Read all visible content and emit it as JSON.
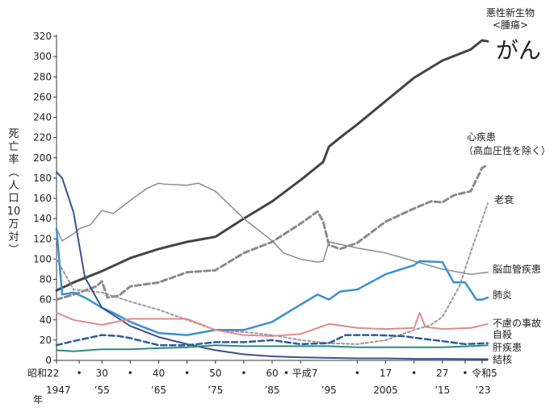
{
  "chart_data": {
    "type": "line",
    "ylabel": "死亡率（人口10万対）",
    "ylim": [
      0,
      320
    ],
    "yticks": [
      0,
      20,
      40,
      60,
      80,
      100,
      120,
      140,
      160,
      180,
      200,
      220,
      240,
      260,
      280,
      300,
      320
    ],
    "xlim": [
      1947,
      2023
    ],
    "xticks_top": [
      {
        "year": 1947,
        "label": "昭和22"
      },
      {
        "year": 1951,
        "label": "•"
      },
      {
        "year": 1955,
        "label": "30"
      },
      {
        "year": 1960,
        "label": "•"
      },
      {
        "year": 1965,
        "label": "40"
      },
      {
        "year": 1970,
        "label": "•"
      },
      {
        "year": 1975,
        "label": "50"
      },
      {
        "year": 1980,
        "label": "•"
      },
      {
        "year": 1985,
        "label": "60"
      },
      {
        "year": 1990,
        "label": "• 平成7"
      },
      {
        "year": 2000,
        "label": "•"
      },
      {
        "year": 2005,
        "label": "17"
      },
      {
        "year": 2010,
        "label": "•"
      },
      {
        "year": 2015,
        "label": "27"
      },
      {
        "year": 2019,
        "label": "•"
      },
      {
        "year": 2022,
        "label": "令和5"
      }
    ],
    "xticks_bottom": [
      {
        "year": 1947,
        "label": "1947"
      },
      {
        "year": 1955,
        "label": "’55"
      },
      {
        "year": 1965,
        "label": "’65"
      },
      {
        "year": 1975,
        "label": "’75"
      },
      {
        "year": 1985,
        "label": "’85"
      },
      {
        "year": 1995,
        "label": "’95"
      },
      {
        "year": 2005,
        "label": "2005"
      },
      {
        "year": 2015,
        "label": "’15"
      },
      {
        "year": 2023,
        "label": "’23"
      }
    ],
    "year_unit_label": "年",
    "series": [
      {
        "id": "cancer",
        "name_small": "悪性新生物",
        "name_small2": "<腫瘍>",
        "name": "がん",
        "color": "#444444",
        "dash": "",
        "width": 3,
        "x": [
          1947,
          1950,
          1955,
          1960,
          1965,
          1970,
          1975,
          1980,
          1985,
          1990,
          1994,
          1995,
          1997,
          2000,
          2005,
          2010,
          2015,
          2020,
          2022,
          2023
        ],
        "y": [
          69,
          77,
          88,
          101,
          110,
          117,
          122,
          140,
          157,
          178,
          196,
          211,
          220,
          233,
          256,
          279,
          296,
          307,
          316,
          315
        ]
      },
      {
        "id": "heart",
        "name": "心疾患",
        "name2": "（高血圧性を除く）",
        "color": "#8a8a8a",
        "dash": "7,4",
        "width": 3,
        "x": [
          1947,
          1950,
          1954,
          1955,
          1956,
          1958,
          1960,
          1965,
          1970,
          1975,
          1980,
          1985,
          1990,
          1993,
          1994,
          1995,
          1997,
          2000,
          2005,
          2010,
          2013,
          2015,
          2017,
          2020,
          2022,
          2023
        ],
        "y": [
          60,
          65,
          73,
          78,
          62,
          64,
          73,
          77,
          87,
          89,
          106,
          117,
          135,
          147,
          137,
          114,
          110,
          116,
          137,
          150,
          157,
          156,
          163,
          167,
          190,
          193
        ]
      },
      {
        "id": "senility",
        "name": "老衰",
        "color": "#9a9a9a",
        "dash": "3,3",
        "width": 2,
        "x": [
          1947,
          1950,
          1955,
          1960,
          1965,
          1970,
          1975,
          1980,
          1985,
          1990,
          1995,
          2000,
          2005,
          2010,
          2013,
          2015,
          2018,
          2020,
          2023
        ],
        "y": [
          100,
          70,
          67,
          58,
          50,
          40,
          30,
          28,
          25,
          20,
          17,
          16,
          20,
          30,
          35,
          43,
          73,
          107,
          155
        ]
      },
      {
        "id": "cerebrovascular",
        "name": "脳血管疾患",
        "color": "#8c8c8c",
        "dash": "",
        "width": 1.5,
        "x": [
          1947,
          1948,
          1950,
          1951,
          1953,
          1955,
          1957,
          1960,
          1963,
          1965,
          1966,
          1970,
          1972,
          1975,
          1980,
          1985,
          1987,
          1990,
          1993,
          1994,
          1995,
          2000,
          2005,
          2010,
          2015,
          2020,
          2023
        ],
        "y": [
          130,
          118,
          125,
          130,
          134,
          148,
          145,
          158,
          170,
          175,
          174,
          173,
          175,
          167,
          140,
          118,
          106,
          100,
          97,
          98,
          117,
          111,
          106,
          98,
          90,
          85,
          87
        ]
      },
      {
        "id": "pneumonia",
        "name": "肺炎",
        "color": "#3a8fd0",
        "dash": "",
        "width": 2.5,
        "x": [
          1947,
          1948,
          1950,
          1952,
          1955,
          1957,
          1960,
          1965,
          1970,
          1975,
          1980,
          1985,
          1990,
          1993,
          1995,
          1997,
          2000,
          2005,
          2010,
          2011,
          2015,
          2017,
          2019,
          2021,
          2022,
          2023
        ],
        "y": [
          130,
          65,
          67,
          62,
          52,
          47,
          38,
          27,
          25,
          30,
          30,
          38,
          55,
          65,
          60,
          68,
          70,
          85,
          94,
          98,
          97,
          77,
          77,
          60,
          60,
          62
        ]
      },
      {
        "id": "tuberculosis",
        "name": "結核",
        "color": "#3d4f8f",
        "dash": "",
        "width": 2,
        "x": [
          1947,
          1948,
          1950,
          1952,
          1955,
          1960,
          1965,
          1970,
          1975,
          1980,
          1985,
          1990,
          1995,
          2000,
          2005,
          2010,
          2015,
          2023
        ],
        "y": [
          186,
          180,
          146,
          82,
          52,
          34,
          23,
          16,
          10,
          6,
          4,
          3,
          2.5,
          2,
          2,
          1.5,
          1.5,
          1.2
        ]
      },
      {
        "id": "accident",
        "name": "不慮の事故",
        "color": "#e3898c",
        "dash": "",
        "width": 2,
        "x": [
          1947,
          1950,
          1955,
          1960,
          1965,
          1970,
          1975,
          1980,
          1985,
          1990,
          1995,
          2000,
          2005,
          2010,
          2011,
          2012,
          2015,
          2020,
          2023
        ],
        "y": [
          47,
          40,
          35,
          41,
          41,
          41,
          30,
          25,
          24,
          26,
          36,
          32,
          31,
          32,
          47,
          33,
          31,
          32,
          36
        ]
      },
      {
        "id": "suicide",
        "name": "自殺",
        "color": "#2a5ba0",
        "dash": "7,4",
        "width": 2.5,
        "x": [
          1947,
          1950,
          1955,
          1958,
          1960,
          1965,
          1970,
          1975,
          1980,
          1985,
          1990,
          1995,
          1998,
          2003,
          2008,
          2012,
          2015,
          2019,
          2023
        ],
        "y": [
          15,
          19,
          25,
          24,
          22,
          15,
          15,
          18,
          18,
          20,
          16,
          17,
          25,
          25,
          24,
          21,
          19,
          16,
          17
        ]
      },
      {
        "id": "liver",
        "name": "肝疾患",
        "color": "#2a8c7a",
        "dash": "",
        "width": 2,
        "x": [
          1947,
          1950,
          1955,
          1960,
          1965,
          1970,
          1975,
          1980,
          1985,
          1990,
          1995,
          2000,
          2005,
          2010,
          2015,
          2020,
          2023
        ],
        "y": [
          10,
          9,
          11,
          11,
          12,
          13,
          15,
          14,
          14,
          14,
          14,
          13,
          13,
          13,
          13,
          14,
          15
        ]
      }
    ]
  }
}
